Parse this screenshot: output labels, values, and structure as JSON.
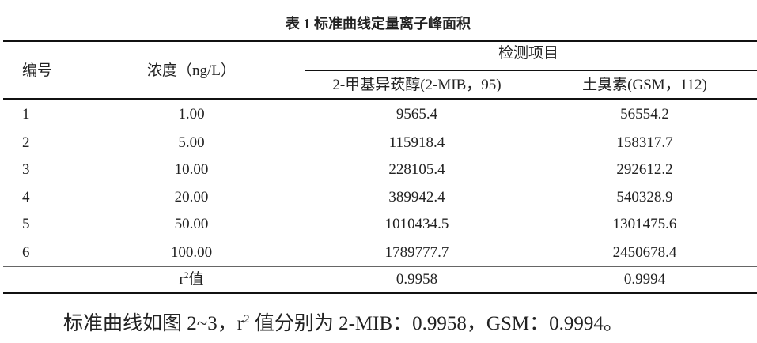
{
  "caption": "表 1  标准曲线定量离子峰面积",
  "table": {
    "headers": {
      "id": "编号",
      "concentration": "浓度（ng/L）",
      "group": "检测项目",
      "mib": "2-甲基异莰醇(2-MIB，95)",
      "gsm": "土臭素(GSM，112)"
    },
    "rows": [
      {
        "id": "1",
        "concentration": "1.00",
        "mib": "9565.4",
        "gsm": "56554.2"
      },
      {
        "id": "2",
        "concentration": "5.00",
        "mib": "115918.4",
        "gsm": "158317.7"
      },
      {
        "id": "3",
        "concentration": "10.00",
        "mib": "228105.4",
        "gsm": "292612.2"
      },
      {
        "id": "4",
        "concentration": "20.00",
        "mib": "389942.4",
        "gsm": "540328.9"
      },
      {
        "id": "5",
        "concentration": "50.00",
        "mib": "1010434.5",
        "gsm": "1301475.6"
      },
      {
        "id": "6",
        "concentration": "100.00",
        "mib": "1789777.7",
        "gsm": "2450678.4"
      }
    ],
    "r2_row": {
      "label_r": "r",
      "label_sup": "2",
      "label_rest": "值",
      "mib": "0.9958",
      "gsm": "0.9994"
    }
  },
  "summary": {
    "before": "标准曲线如图 2~3，r",
    "sup": "2",
    "after": " 值分别为 2-MIB：0.9958，GSM：0.9994。"
  }
}
